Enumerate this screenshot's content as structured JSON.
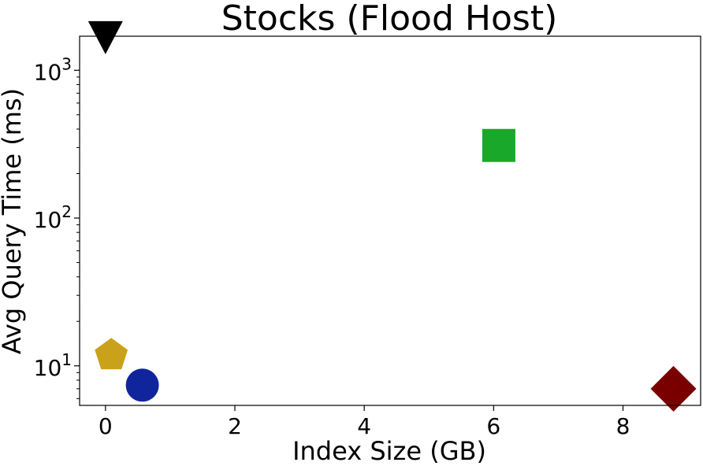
{
  "chart_data": {
    "type": "scatter",
    "title": "Stocks (Flood Host)",
    "xlabel": "Index Size (GB)",
    "ylabel": "Avg Query Time (ms)",
    "xlim": [
      -0.4,
      9.2
    ],
    "ylim": [
      5.4,
      1700
    ],
    "yscale": "log",
    "grid": false,
    "x_ticks": [
      0,
      2,
      4,
      6,
      8
    ],
    "x_tick_labels": [
      "0",
      "2",
      "4",
      "6",
      "8"
    ],
    "y_ticks": [
      10,
      100,
      1000
    ],
    "y_tick_bases": [
      "10",
      "10",
      "10"
    ],
    "y_tick_exponents": [
      "1",
      "2",
      "3"
    ],
    "points": [
      {
        "x": 0.0,
        "y": 1300,
        "marker": "triangle-down",
        "color": "#000000"
      },
      {
        "x": 6.08,
        "y": 310,
        "marker": "square",
        "color": "#1aa82a"
      },
      {
        "x": 0.09,
        "y": 11.8,
        "marker": "pentagon",
        "color": "#c9a11a"
      },
      {
        "x": 0.57,
        "y": 7.4,
        "marker": "circle",
        "color": "#10259c"
      },
      {
        "x": 8.78,
        "y": 7.0,
        "marker": "diamond",
        "color": "#7a0000"
      }
    ]
  }
}
